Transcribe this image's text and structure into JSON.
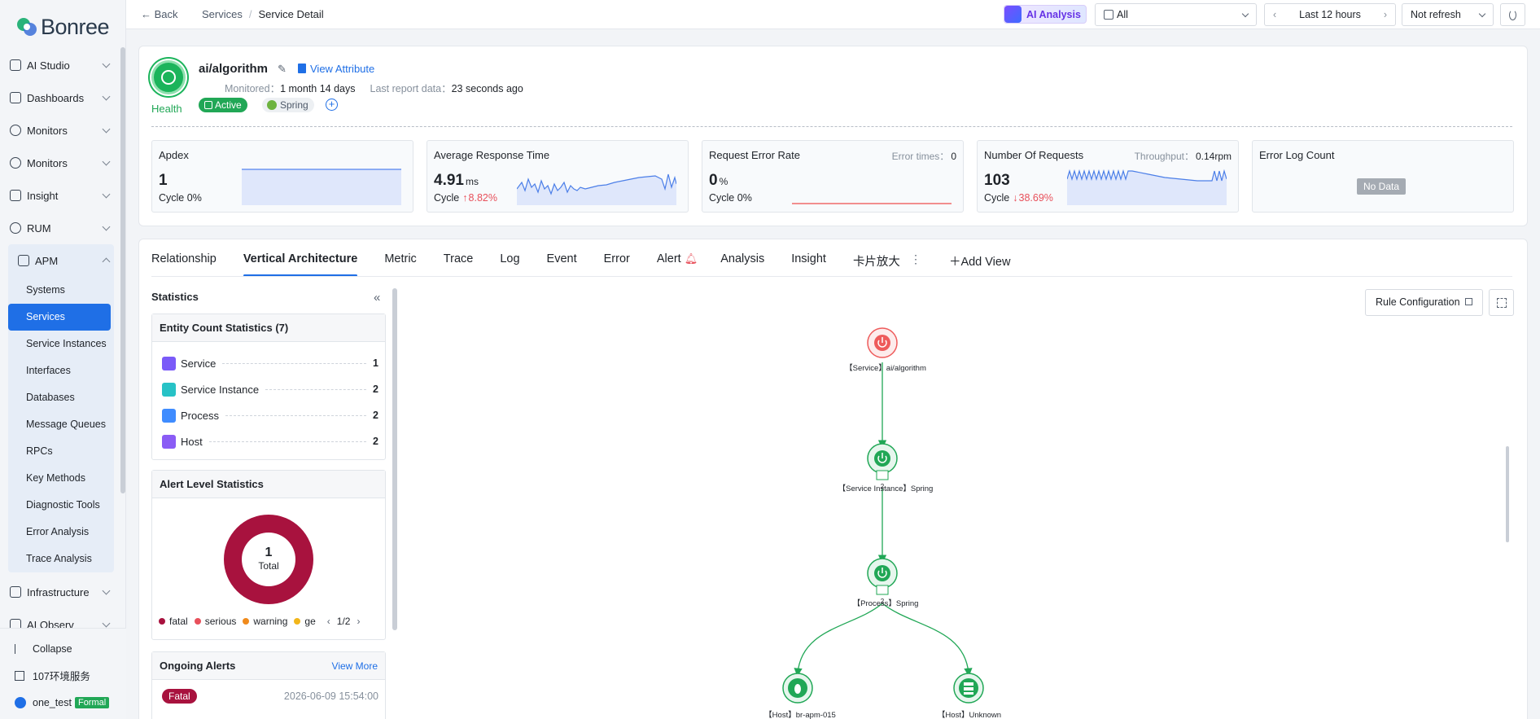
{
  "brand": {
    "logo_text": "Bonree"
  },
  "sidebar": {
    "items_top": [
      {
        "label": "AI Studio"
      },
      {
        "label": "Dashboards"
      },
      {
        "label": "Monitors"
      },
      {
        "label": "Monitors"
      },
      {
        "label": "Insight"
      },
      {
        "label": "RUM"
      }
    ],
    "apm": {
      "label": "APM",
      "children": [
        "Systems",
        "Services",
        "Service Instances",
        "Interfaces",
        "Databases",
        "Message Queues",
        "RPCs",
        "Key Methods",
        "Diagnostic Tools",
        "Error Analysis",
        "Trace Analysis"
      ],
      "active": "Services"
    },
    "items_bottom": [
      {
        "label": "Infrastructure"
      },
      {
        "label": "AI Observ"
      }
    ],
    "collapse_label": "Collapse",
    "env_label": "107环境服务",
    "user_name": "one_test",
    "user_badge": "Formal"
  },
  "topbar": {
    "back_label": "Back",
    "crumb_parent": "Services",
    "crumb_sep": "/",
    "crumb_current": "Service Detail",
    "ai_label": "AI Analysis",
    "env_select": "All",
    "time_range": "Last 12 hours",
    "refresh": "Not refresh"
  },
  "service": {
    "name": "ai/algorithm",
    "view_attr": "View Attribute",
    "monitored_label": "Monitored：",
    "monitored_value": "1 month 14 days",
    "last_report_label": "Last report data：",
    "last_report_value": "23 seconds ago",
    "health_label": "Health",
    "tag_active": "Active",
    "tag_framework": "Spring"
  },
  "metrics": [
    {
      "title": "Apdex",
      "value": "1",
      "unit": "",
      "cycle_label": "Cycle",
      "cycle_value": "0%"
    },
    {
      "title": "Average Response Time",
      "value": "4.91",
      "unit": "ms",
      "cycle_label": "Cycle",
      "cycle_value": "8.82%"
    },
    {
      "title": "Request Error Rate",
      "value": "0",
      "unit": "%",
      "cycle_label": "Cycle",
      "cycle_value": "0%",
      "extra_label": "Error times：",
      "extra_value": "0"
    },
    {
      "title": "Number Of Requests",
      "value": "103",
      "unit": "",
      "cycle_label": "Cycle",
      "cycle_value": "38.69%",
      "extra_label": "Throughput：",
      "extra_value": "0.14rpm"
    },
    {
      "title": "Error Log Count",
      "no_data": "No Data"
    }
  ],
  "tabs": [
    "Relationship",
    "Vertical Architecture",
    "Metric",
    "Trace",
    "Log",
    "Event",
    "Error",
    "Alert",
    "Analysis",
    "Insight",
    "卡片放大"
  ],
  "active_tab": "Vertical Architecture",
  "add_view": "Add View",
  "statistics": {
    "title": "Statistics",
    "entity_title": "Entity Count Statistics",
    "entity_total": "(7)",
    "entities": [
      {
        "name": "Service",
        "count": "1",
        "color": "#7a5af8"
      },
      {
        "name": "Service Instance",
        "count": "2",
        "color": "#27c2c6"
      },
      {
        "name": "Process",
        "count": "2",
        "color": "#3f8cff"
      },
      {
        "name": "Host",
        "count": "2",
        "color": "#8a5cf5"
      }
    ],
    "alert_title": "Alert Level Statistics",
    "donut_value": "1",
    "donut_label": "Total",
    "legend": [
      {
        "name": "fatal",
        "color": "#a8123e"
      },
      {
        "name": "serious",
        "color": "#e8505b"
      },
      {
        "name": "warning",
        "color": "#f08a1c"
      },
      {
        "name": "ge",
        "color": "#f2b61a"
      }
    ],
    "legend_page": "1/2",
    "ongoing_title": "Ongoing Alerts",
    "view_more": "View More",
    "alert_level": "Fatal",
    "alert_time": "2026-06-09 15:54:00"
  },
  "graph": {
    "rule_config": "Rule Configuration",
    "nodes": [
      {
        "label": "【Service】ai/algorithm",
        "count": ""
      },
      {
        "label": "【Service Instance】Spring",
        "count": "2"
      },
      {
        "label": "【Process】Spring",
        "count": "2"
      },
      {
        "label": "【Host】br-apm-015",
        "count": ""
      },
      {
        "label": "【Host】Unknown",
        "count": ""
      }
    ]
  }
}
